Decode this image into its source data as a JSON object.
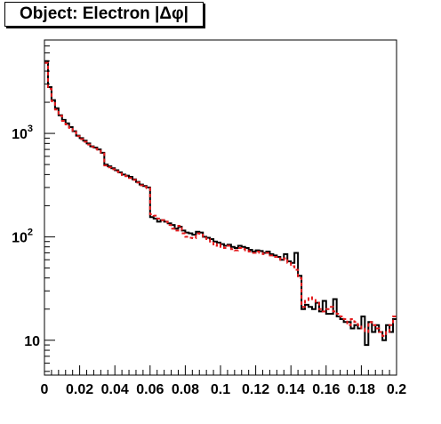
{
  "chart_data": {
    "type": "line",
    "title": "Object: Electron |Δφ|",
    "xlabel": "",
    "ylabel": "",
    "x_axis": {
      "range": [
        0,
        0.2
      ],
      "ticks": [
        0,
        0.02,
        0.04,
        0.06,
        0.08,
        0.1,
        0.12,
        0.14,
        0.16,
        0.18,
        0.2
      ],
      "tick_labels": [
        "0",
        "0.02",
        "0.04",
        "0.06",
        "0.08",
        "0.1",
        "0.12",
        "0.14",
        "0.16",
        "0.18",
        "0.2"
      ]
    },
    "y_axis": {
      "scale": "log",
      "range": [
        4.6,
        8000
      ],
      "ticks": [
        10,
        100,
        1000
      ],
      "tick_labels": [
        {
          "base": "10",
          "exp": ""
        },
        {
          "base": "10",
          "exp": "2"
        },
        {
          "base": "10",
          "exp": "3"
        }
      ]
    },
    "grid": false,
    "legend": "none",
    "bin_width": 0.002,
    "series": [
      {
        "color": "#000000",
        "style": "solid",
        "values": [
          5000,
          2800,
          2100,
          1750,
          1500,
          1350,
          1250,
          1150,
          1050,
          950,
          900,
          850,
          800,
          750,
          730,
          700,
          650,
          500,
          480,
          460,
          440,
          420,
          400,
          390,
          380,
          360,
          340,
          320,
          310,
          300,
          155,
          150,
          140,
          145,
          140,
          135,
          130,
          120,
          125,
          115,
          110,
          108,
          105,
          112,
          110,
          100,
          98,
          95,
          90,
          88,
          85,
          82,
          84,
          80,
          78,
          82,
          80,
          78,
          75,
          72,
          74,
          73,
          70,
          72,
          68,
          66,
          64,
          60,
          68,
          58,
          56,
          70,
          42,
          20,
          22,
          21,
          20,
          23,
          19,
          24,
          18,
          18,
          25,
          17,
          16,
          15,
          15,
          13,
          14,
          13,
          17,
          9,
          15,
          12,
          14,
          12,
          10,
          14,
          12,
          16
        ]
      },
      {
        "color": "#e41a1c",
        "style": "dashed",
        "values": [
          4800,
          2700,
          2050,
          1700,
          1480,
          1320,
          1220,
          1130,
          1030,
          940,
          880,
          830,
          780,
          740,
          710,
          680,
          640,
          490,
          470,
          450,
          430,
          410,
          395,
          385,
          370,
          355,
          335,
          315,
          305,
          295,
          165,
          160,
          150,
          145,
          140,
          130,
          120,
          115,
          128,
          108,
          100,
          98,
          97,
          108,
          105,
          98,
          95,
          90,
          82,
          85,
          80,
          78,
          82,
          76,
          74,
          78,
          76,
          74,
          72,
          70,
          72,
          70,
          68,
          70,
          66,
          64,
          62,
          60,
          62,
          56,
          52,
          48,
          40,
          21,
          24,
          26,
          25,
          23,
          20,
          19,
          20,
          21,
          19,
          18,
          17,
          16,
          14,
          16,
          15,
          14,
          13,
          12,
          15,
          14,
          13,
          12,
          11,
          12,
          14,
          17
        ]
      }
    ]
  }
}
